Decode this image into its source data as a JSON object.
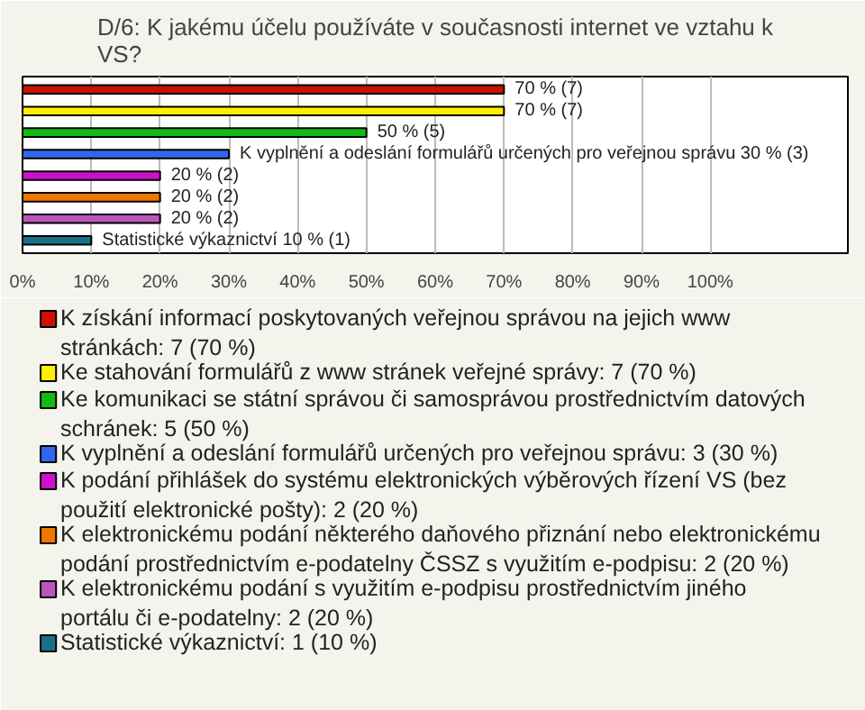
{
  "chart_data": {
    "type": "bar",
    "orientation": "horizontal",
    "title": "D/6: K jakému účelu používáte v současnosti internet ve vztahu k VS?",
    "categories": [
      null,
      null,
      null,
      null,
      null,
      null,
      null,
      null
    ],
    "series": [
      {
        "name": "K získání informací poskytovaných veřejnou správou na jejich www stránkách: 7 (70 %)",
        "color": "#cc1100",
        "values": [
          70,
          null,
          null,
          null,
          null,
          null,
          null,
          null
        ],
        "value_labels": [
          "70 % (7)",
          null,
          null,
          null,
          null,
          null,
          null,
          null
        ]
      },
      {
        "name": "Ke stahování formulářů z www stránek veřejné správy: 7 (70 %)",
        "color": "#ffee00",
        "values": [
          null,
          70,
          null,
          null,
          null,
          null,
          null,
          null
        ],
        "value_labels": [
          null,
          "70 % (7)",
          null,
          null,
          null,
          null,
          null,
          null
        ]
      },
      {
        "name": "Ke komunikaci se státní správou či samosprávou prostřednictvím datových schránek: 5 (50 %)",
        "color": "#11bb11",
        "values": [
          null,
          null,
          50,
          null,
          null,
          null,
          null,
          null
        ],
        "value_labels": [
          null,
          null,
          "50 % (5)",
          null,
          null,
          null,
          null,
          null
        ]
      },
      {
        "name": "K vyplnění a odeslání formulářů určených pro veřejnou správu: 3 (30 %)",
        "color": "#3366ee",
        "values": [
          null,
          null,
          null,
          30,
          null,
          null,
          null,
          null
        ],
        "value_labels": [
          null,
          null,
          null,
          "K vyplnění a odeslání formulářů určených pro veřejnou správu 30 % (3)",
          null,
          null,
          null,
          null
        ]
      },
      {
        "name": "K podání přihlášek do systému elektronických výběrových řízení VS (bez použití elektronické pošty): 2 (20 %)",
        "color": "#cc11cc",
        "values": [
          null,
          null,
          null,
          null,
          20,
          null,
          null,
          null
        ],
        "value_labels": [
          null,
          null,
          null,
          null,
          "20 % (2)",
          null,
          null,
          null
        ]
      },
      {
        "name": "K elektronickému podání některého daňového přiznání nebo elektronickému podání prostřednictvím e-podatelny ČSSZ s využitím e-podpisu: 2 (20 %)",
        "color": "#ee7700",
        "values": [
          null,
          null,
          null,
          null,
          null,
          20,
          null,
          null
        ],
        "value_labels": [
          null,
          null,
          null,
          null,
          null,
          "20 % (2)",
          null,
          null
        ]
      },
      {
        "name": "K elektronickému podání s využitím e-podpisu prostřednictvím jiného portálu či e-podatelny: 2 (20 %)",
        "color": "#bb55bb",
        "values": [
          null,
          null,
          null,
          null,
          null,
          null,
          20,
          null
        ],
        "value_labels": [
          null,
          null,
          null,
          null,
          null,
          null,
          "20 % (2)",
          null
        ]
      },
      {
        "name": "Statistické výkaznictví: 1 (10 %)",
        "color": "#1a7088",
        "values": [
          null,
          null,
          null,
          null,
          null,
          null,
          null,
          10
        ],
        "value_labels": [
          null,
          null,
          null,
          null,
          null,
          null,
          null,
          "Statistické výkaznictví 10 % (1)"
        ]
      }
    ],
    "xlim": [
      0,
      120
    ],
    "xticks": [
      {
        "value": 0,
        "label": "0%"
      },
      {
        "value": 10,
        "label": "10%"
      },
      {
        "value": 20,
        "label": "20%"
      },
      {
        "value": 30,
        "label": "30%"
      },
      {
        "value": 40,
        "label": "40%"
      },
      {
        "value": 50,
        "label": "50%"
      },
      {
        "value": 60,
        "label": "60%"
      },
      {
        "value": 70,
        "label": "70%"
      },
      {
        "value": 80,
        "label": "80%"
      },
      {
        "value": 90,
        "label": "90%"
      },
      {
        "value": 100,
        "label": "100%"
      }
    ],
    "grid": "x",
    "legend": "bottom"
  }
}
